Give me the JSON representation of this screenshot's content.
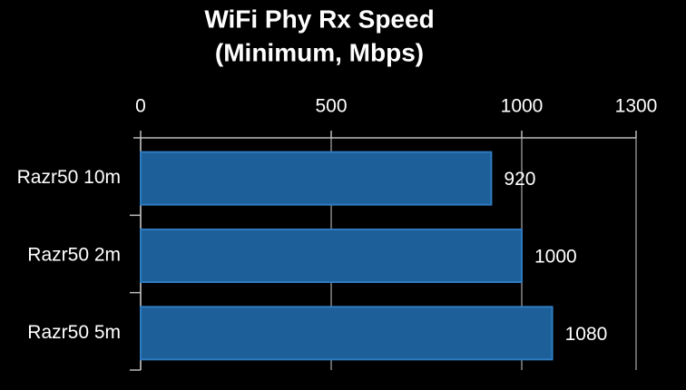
{
  "chart_data": {
    "type": "barh",
    "title": [
      "WiFi Phy Rx Speed",
      "(Minimum, Mbps)"
    ],
    "categories": [
      "Razr50 10m",
      "Razr50 2m",
      "Razr50 5m"
    ],
    "values": [
      920,
      1000,
      1080
    ],
    "color": "#1d5f98",
    "xlim": [
      0,
      1300
    ],
    "xticks": [
      0,
      500,
      1000,
      1300
    ],
    "grid": true
  }
}
